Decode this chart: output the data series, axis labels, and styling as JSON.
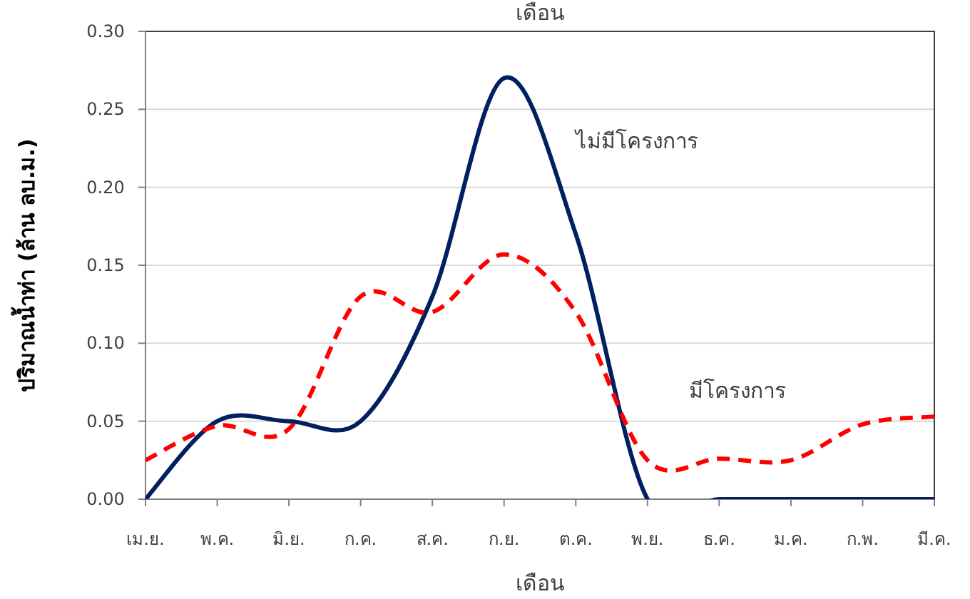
{
  "chart_data": {
    "type": "line",
    "title": "เดือน",
    "xlabel": "เดือน",
    "ylabel": "ปริมาณน้ำท่า (ล้าน ลบ.ม.)",
    "categories": [
      "เม.ย.",
      "พ.ค.",
      "มิ.ย.",
      "ก.ค.",
      "ส.ค.",
      "ก.ย.",
      "ต.ค.",
      "พ.ย.",
      "ธ.ค.",
      "ม.ค.",
      "ก.พ.",
      "มี.ค."
    ],
    "series": [
      {
        "name": "ไม่มีโครงการ",
        "color": "#002060",
        "line_style": "solid",
        "values": [
          0,
          0.05,
          0.05,
          0.05,
          0.13,
          0.27,
          0.17,
          0,
          0,
          0,
          0,
          0
        ]
      },
      {
        "name": "มีโครงการ",
        "color": "#ff0000",
        "line_style": "dashed",
        "values": [
          0.025,
          0.047,
          0.045,
          0.13,
          0.12,
          0.157,
          0.12,
          0.025,
          0.026,
          0.025,
          0.048,
          0.053
        ]
      }
    ],
    "ylim": [
      0,
      0.3
    ],
    "yticks": [
      {
        "value": 0,
        "label": "0.00"
      },
      {
        "value": 0.05,
        "label": "0.05"
      },
      {
        "value": 0.1,
        "label": "0.10"
      },
      {
        "value": 0.15,
        "label": "0.15"
      },
      {
        "value": 0.2,
        "label": "0.20"
      },
      {
        "value": 0.25,
        "label": "0.25"
      },
      {
        "value": 0.3,
        "label": "0.30"
      }
    ],
    "grid": "y",
    "legend": false,
    "marker": "none"
  }
}
